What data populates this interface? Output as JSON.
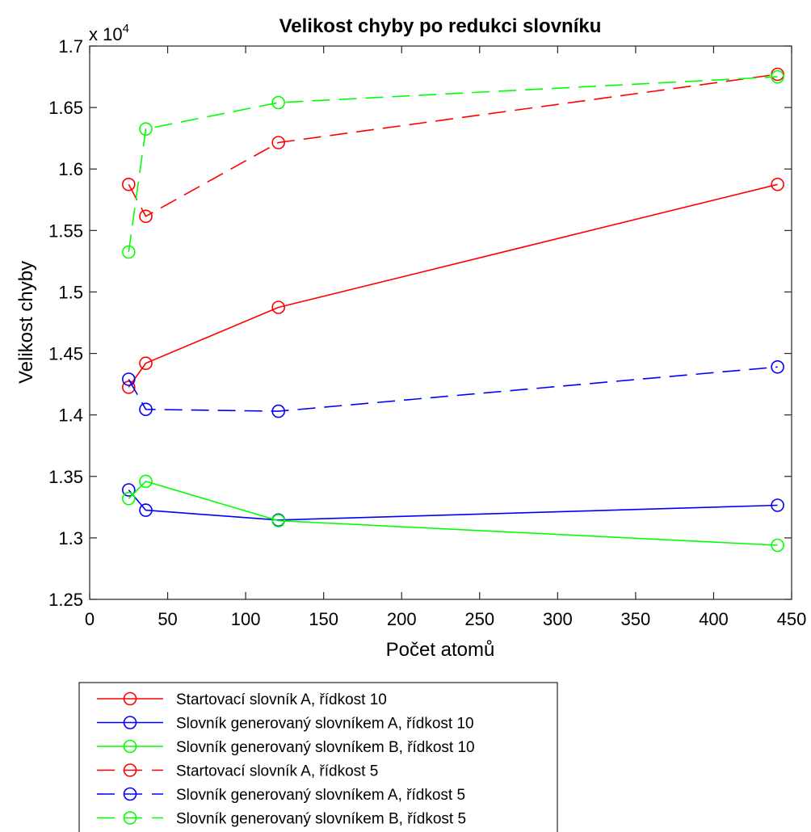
{
  "chart_data": {
    "type": "line",
    "title": "Velikost chyby po redukci slovníku",
    "xlabel": "Počet atomů",
    "ylabel": "Velikost chyby",
    "exponent_label": {
      "base": "x 10",
      "power": "4"
    },
    "xlim": [
      0,
      450
    ],
    "ylim": [
      1.25,
      1.7
    ],
    "x_ticks": [
      0,
      50,
      100,
      150,
      200,
      250,
      300,
      350,
      400,
      450
    ],
    "y_ticks": [
      1.25,
      1.3,
      1.35,
      1.4,
      1.45,
      1.5,
      1.55,
      1.6,
      1.65,
      1.7
    ],
    "grid": false,
    "legend_position": "below plot, left",
    "series": [
      {
        "name": "Startovací slovník A, řídkost 10",
        "color": "#ff0000",
        "dash": "solid",
        "x": [
          25,
          36,
          121,
          441
        ],
        "y": [
          1.4225,
          1.442,
          1.4875,
          1.5875
        ]
      },
      {
        "name": "Slovník generovaný slovníkem A, řídkost 10",
        "color": "#0000ff",
        "dash": "solid",
        "x": [
          25,
          36,
          121,
          441
        ],
        "y": [
          1.339,
          1.3225,
          1.3145,
          1.3265
        ]
      },
      {
        "name": "Slovník generovaný slovníkem B, řídkost 10",
        "color": "#00ff00",
        "dash": "solid",
        "x": [
          25,
          36,
          121,
          441
        ],
        "y": [
          1.332,
          1.346,
          1.314,
          1.294
        ]
      },
      {
        "name": "Startovací slovník A, řídkost 5",
        "color": "#ff0000",
        "dash": "dashed",
        "x": [
          25,
          36,
          121,
          441
        ],
        "y": [
          1.5875,
          1.5615,
          1.6215,
          1.677
        ]
      },
      {
        "name": "Slovník generovaný slovníkem A, řídkost 5",
        "color": "#0000ff",
        "dash": "dashed",
        "x": [
          25,
          36,
          121,
          441
        ],
        "y": [
          1.429,
          1.4045,
          1.403,
          1.439
        ]
      },
      {
        "name": "Slovník generovaný slovníkem B, řídkost 5",
        "color": "#00ff00",
        "dash": "dashed",
        "x": [
          25,
          36,
          121,
          441
        ],
        "y": [
          1.5325,
          1.6325,
          1.654,
          1.675
        ]
      }
    ]
  }
}
